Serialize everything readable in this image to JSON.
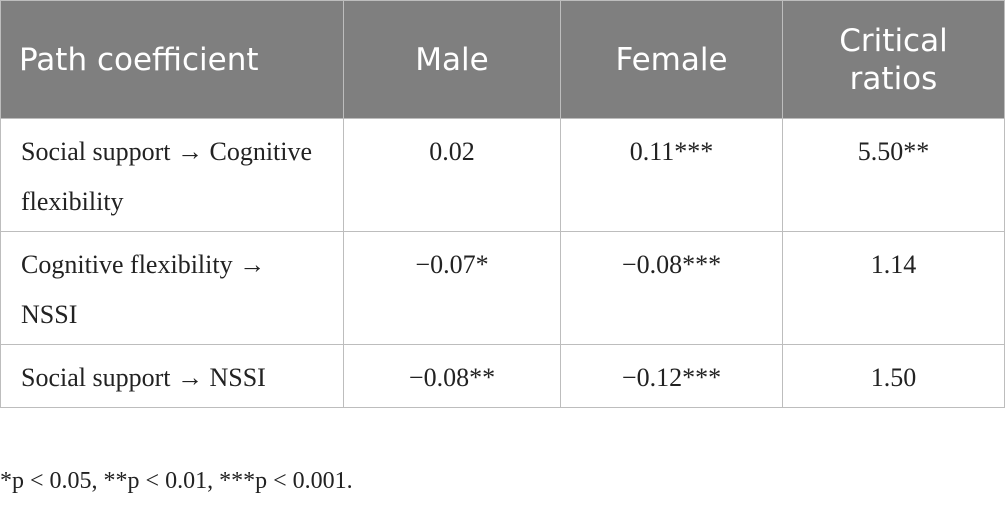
{
  "table": {
    "header": [
      "Path coefficient",
      "Male",
      "Female",
      "Critical ratios"
    ],
    "rows": [
      [
        "Social support → Cognitive flexibility",
        "0.02",
        "0.11***",
        "5.50**"
      ],
      [
        "Cognitive flexibility → NSSI",
        "−0.07*",
        "−0.08***",
        "1.14"
      ],
      [
        "Social support → NSSI",
        "−0.08**",
        "−0.12***",
        "1.50"
      ]
    ],
    "note": "*p < 0.05, **p < 0.01, ***p < 0.001."
  }
}
